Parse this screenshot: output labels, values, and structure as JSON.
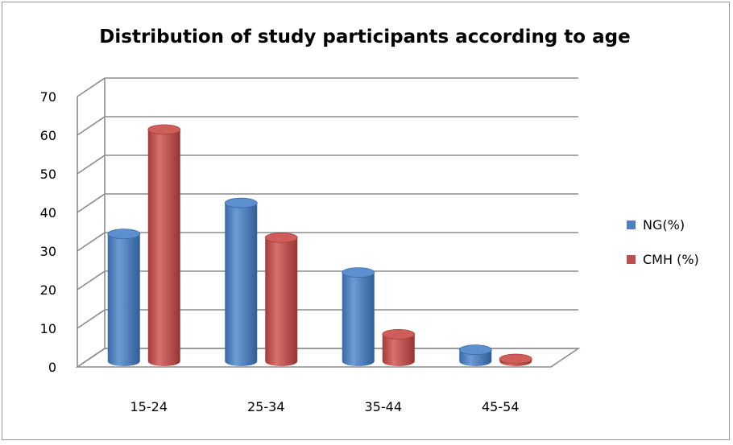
{
  "chart_data": {
    "type": "bar",
    "title": "Distribution of study participants according to age",
    "xlabel": "",
    "ylabel": "",
    "categories": [
      "15-24",
      "25-34",
      "35-44",
      "45-54"
    ],
    "series": [
      {
        "name": "NG(%)",
        "values": [
          33,
          41,
          23,
          3
        ],
        "color": "#4f81bd"
      },
      {
        "name": "CMH (%)",
        "values": [
          60,
          32,
          7,
          0.5
        ],
        "color": "#c0504d"
      }
    ],
    "ylim": [
      0,
      70
    ],
    "yticks": [
      0,
      10,
      20,
      30,
      40,
      50,
      60,
      70
    ],
    "grid": true,
    "legend": "right",
    "style": "3d-cylinder"
  }
}
